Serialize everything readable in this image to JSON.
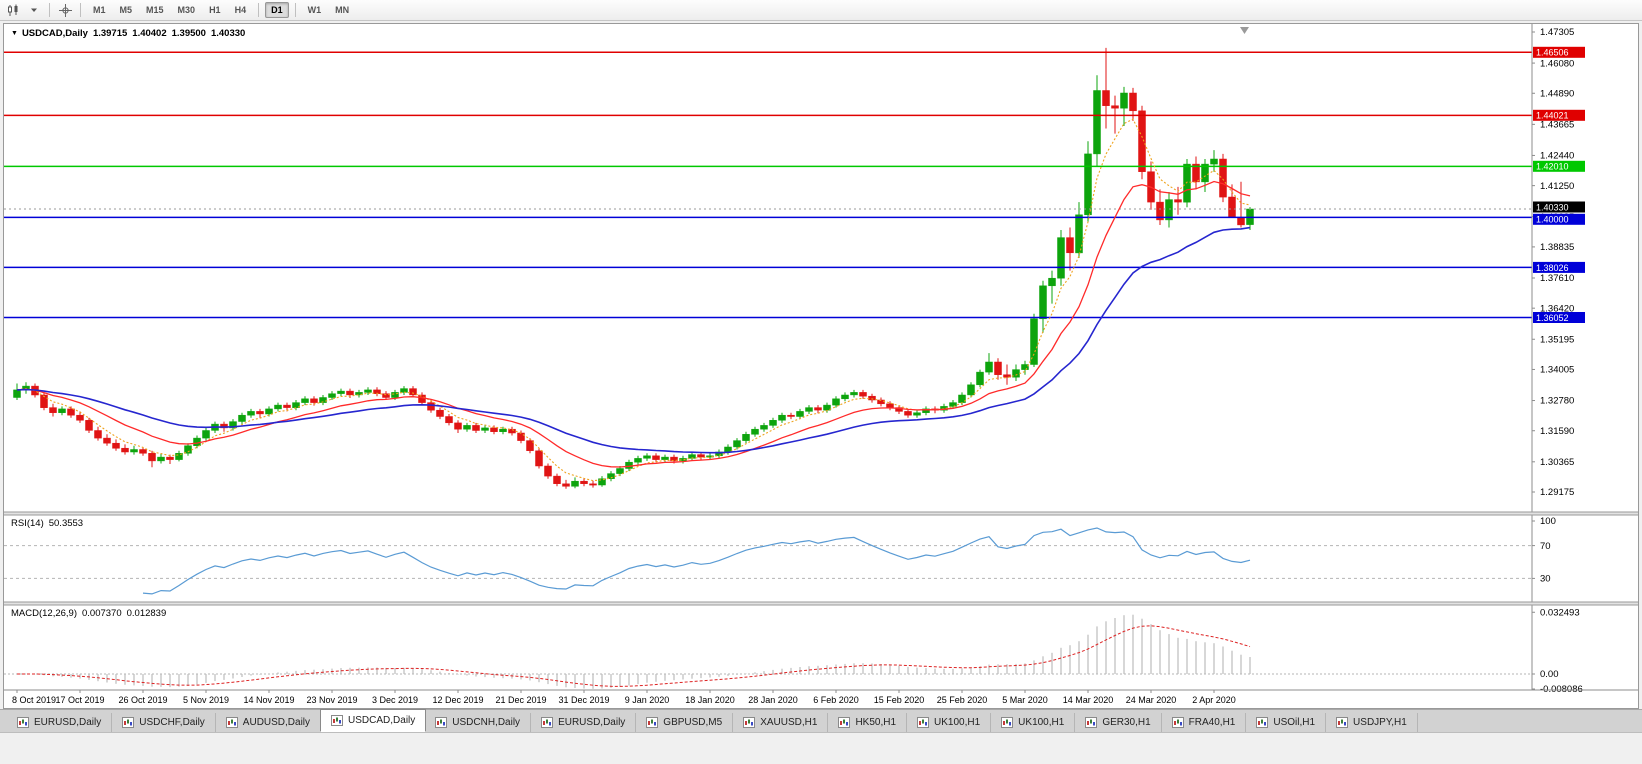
{
  "toolbar": {
    "icons": [
      "chart-type-icon",
      "crosshair-icon"
    ],
    "timeframes": [
      "M1",
      "M5",
      "M15",
      "M30",
      "H1",
      "H4",
      "D1",
      "W1",
      "MN"
    ],
    "active_timeframe": "D1",
    "group_separators_after": [
      "H4",
      "D1"
    ]
  },
  "chart_header": {
    "collapse_icon": "▼",
    "symbol": "USDCAD,Daily",
    "open": "1.39715",
    "high": "1.40402",
    "low": "1.39500",
    "close": "1.40330"
  },
  "rsi_panel": {
    "label": "RSI(14)",
    "value": "50.3553",
    "axis_labels": [
      "100",
      "70",
      "30"
    ]
  },
  "macd_panel": {
    "label": "MACD(12,26,9)",
    "values": [
      "0.007370",
      "0.012839"
    ],
    "axis_labels": [
      "0.032493",
      "0.00",
      "-0.008086"
    ]
  },
  "tabs": {
    "items": [
      "EURUSD,Daily",
      "USDCHF,Daily",
      "AUDUSD,Daily",
      "USDCAD,Daily",
      "USDCNH,Daily",
      "EURUSD,Daily",
      "GBPUSD,M5",
      "XAUUSD,H1",
      "HK50,H1",
      "UK100,H1",
      "UK100,H1",
      "GER30,H1",
      "FRA40,H1",
      "USOil,H1",
      "USDJPY,H1"
    ],
    "active_index": 3
  },
  "chart_data": {
    "type": "candlestick",
    "title": "USDCAD,Daily",
    "symbol": "USDCAD",
    "timeframe": "Daily",
    "ylim": [
      1.29175,
      1.47305
    ],
    "axis_top_price": 1.47305,
    "axis_bottom_price": 1.29175,
    "price_axis_ticks": [
      "1.47305",
      "1.46080",
      "1.44890",
      "1.43665",
      "1.42440",
      "1.41250",
      "1.40025",
      "1.38835",
      "1.37610",
      "1.36420",
      "1.35195",
      "1.34005",
      "1.32780",
      "1.31590",
      "1.30365",
      "1.29175"
    ],
    "date_labels": [
      "8 Oct 2019",
      "17 Oct 2019",
      "26 Oct 2019",
      "5 Nov 2019",
      "14 Nov 2019",
      "23 Nov 2019",
      "3 Dec 2019",
      "12 Dec 2019",
      "21 Dec 2019",
      "31 Dec 2019",
      "9 Jan 2020",
      "18 Jan 2020",
      "28 Jan 2020",
      "6 Feb 2020",
      "15 Feb 2020",
      "25 Feb 2020",
      "5 Mar 2020",
      "14 Mar 2020",
      "24 Mar 2020",
      "2 Apr 2020"
    ],
    "candles_per_label": 7,
    "bull_color": "#0da40d",
    "bear_color": "#e01414",
    "hlines": [
      {
        "price": 1.46506,
        "color": "#e00000",
        "badge": "1.46506",
        "badge_dy": 0
      },
      {
        "price": 1.44021,
        "color": "#e00000",
        "badge": "1.44021",
        "badge_dy": 0
      },
      {
        "price": 1.4201,
        "color": "#00c800",
        "badge": "1.42010",
        "badge_dy": 0
      },
      {
        "price": 1.4,
        "color": "#0000d8",
        "badge": "1.40000",
        "badge_dy": 2
      },
      {
        "price": 1.38026,
        "color": "#0000d8",
        "badge": "1.38026",
        "badge_dy": 0
      },
      {
        "price": 1.36052,
        "color": "#0000d8",
        "badge": "1.36052",
        "badge_dy": 0
      }
    ],
    "current_price": {
      "value": 1.4033,
      "badge": "1.40330",
      "color": "#000000",
      "badge_dy": -2
    },
    "moving_averages": [
      {
        "period": 5,
        "color": "#efa31d",
        "style": "dashed",
        "width": 1.1
      },
      {
        "period": 13,
        "color": "#ff2a2a",
        "style": "solid",
        "width": 1.3
      },
      {
        "period": 30,
        "color": "#2626cf",
        "style": "solid",
        "width": 1.6
      }
    ],
    "rsi": {
      "period": 14,
      "current": 50.3553,
      "levels": [
        70,
        30
      ],
      "color": "#5a9bd4"
    },
    "macd": {
      "fast": 12,
      "slow": 26,
      "signal": 9,
      "current_macd": 0.00737,
      "current_signal": 0.012839,
      "axis_max": 0.032493,
      "axis_min": -0.008086,
      "histogram_color": "#bcbcbc",
      "signal_color": "#dd2222"
    },
    "candles": [
      [
        1.329,
        1.3345,
        1.328,
        1.332
      ],
      [
        1.332,
        1.335,
        1.3305,
        1.3335
      ],
      [
        1.3335,
        1.3345,
        1.329,
        1.33
      ],
      [
        1.33,
        1.331,
        1.324,
        1.325
      ],
      [
        1.325,
        1.3265,
        1.3215,
        1.323
      ],
      [
        1.323,
        1.3255,
        1.322,
        1.3245
      ],
      [
        1.3245,
        1.3255,
        1.321,
        1.322
      ],
      [
        1.322,
        1.3235,
        1.319,
        1.32
      ],
      [
        1.32,
        1.321,
        1.315,
        1.316
      ],
      [
        1.316,
        1.3175,
        1.312,
        1.313
      ],
      [
        1.313,
        1.3145,
        1.31,
        1.311
      ],
      [
        1.311,
        1.3125,
        1.308,
        1.309
      ],
      [
        1.309,
        1.3105,
        1.3065,
        1.3075
      ],
      [
        1.3075,
        1.31,
        1.3065,
        1.3085
      ],
      [
        1.3085,
        1.3095,
        1.306,
        1.307
      ],
      [
        1.307,
        1.308,
        1.3015,
        1.304
      ],
      [
        1.304,
        1.307,
        1.303,
        1.3055
      ],
      [
        1.3055,
        1.3065,
        1.3028,
        1.3045
      ],
      [
        1.3045,
        1.308,
        1.3038,
        1.307
      ],
      [
        1.307,
        1.311,
        1.306,
        1.31
      ],
      [
        1.31,
        1.314,
        1.309,
        1.313
      ],
      [
        1.313,
        1.317,
        1.312,
        1.316
      ],
      [
        1.316,
        1.3195,
        1.315,
        1.3185
      ],
      [
        1.3185,
        1.3195,
        1.3155,
        1.317
      ],
      [
        1.317,
        1.3205,
        1.316,
        1.3195
      ],
      [
        1.3195,
        1.323,
        1.3185,
        1.322
      ],
      [
        1.322,
        1.3245,
        1.321,
        1.3235
      ],
      [
        1.3235,
        1.3245,
        1.321,
        1.3225
      ],
      [
        1.3225,
        1.3255,
        1.3215,
        1.3245
      ],
      [
        1.3245,
        1.327,
        1.3235,
        1.326
      ],
      [
        1.326,
        1.327,
        1.3235,
        1.325
      ],
      [
        1.325,
        1.328,
        1.324,
        1.327
      ],
      [
        1.327,
        1.3295,
        1.326,
        1.3285
      ],
      [
        1.3285,
        1.3295,
        1.3258,
        1.327
      ],
      [
        1.327,
        1.33,
        1.326,
        1.329
      ],
      [
        1.329,
        1.3315,
        1.328,
        1.3305
      ],
      [
        1.3305,
        1.3325,
        1.3295,
        1.3315
      ],
      [
        1.3315,
        1.3325,
        1.3288,
        1.33
      ],
      [
        1.33,
        1.332,
        1.329,
        1.331
      ],
      [
        1.331,
        1.333,
        1.33,
        1.332
      ],
      [
        1.332,
        1.333,
        1.3295,
        1.3305
      ],
      [
        1.3305,
        1.3315,
        1.328,
        1.329
      ],
      [
        1.329,
        1.332,
        1.328,
        1.331
      ],
      [
        1.331,
        1.3335,
        1.33,
        1.3325
      ],
      [
        1.3325,
        1.3335,
        1.329,
        1.33
      ],
      [
        1.33,
        1.331,
        1.326,
        1.327
      ],
      [
        1.327,
        1.328,
        1.323,
        1.324
      ],
      [
        1.324,
        1.325,
        1.3205,
        1.3215
      ],
      [
        1.3215,
        1.3225,
        1.318,
        1.319
      ],
      [
        1.319,
        1.32,
        1.315,
        1.3165
      ],
      [
        1.3165,
        1.319,
        1.3155,
        1.318
      ],
      [
        1.318,
        1.319,
        1.315,
        1.316
      ],
      [
        1.316,
        1.318,
        1.315,
        1.317
      ],
      [
        1.317,
        1.318,
        1.3145,
        1.3155
      ],
      [
        1.3155,
        1.3175,
        1.3145,
        1.3165
      ],
      [
        1.3165,
        1.3175,
        1.314,
        1.315
      ],
      [
        1.315,
        1.316,
        1.311,
        1.312
      ],
      [
        1.312,
        1.313,
        1.307,
        1.308
      ],
      [
        1.308,
        1.309,
        1.301,
        1.302
      ],
      [
        1.302,
        1.303,
        1.297,
        1.298
      ],
      [
        1.298,
        1.299,
        1.294,
        1.295
      ],
      [
        1.295,
        1.2965,
        1.293,
        1.294
      ],
      [
        1.294,
        1.2975,
        1.2932,
        1.296
      ],
      [
        1.296,
        1.297,
        1.294,
        1.295
      ],
      [
        1.295,
        1.2962,
        1.2935,
        1.2945
      ],
      [
        1.2945,
        1.298,
        1.2938,
        1.297
      ],
      [
        1.297,
        1.3,
        1.296,
        1.299
      ],
      [
        1.299,
        1.302,
        1.298,
        1.301
      ],
      [
        1.301,
        1.3045,
        1.3,
        1.3035
      ],
      [
        1.3035,
        1.306,
        1.3025,
        1.305
      ],
      [
        1.305,
        1.307,
        1.304,
        1.306
      ],
      [
        1.306,
        1.307,
        1.3035,
        1.3045
      ],
      [
        1.3045,
        1.3065,
        1.3035,
        1.3055
      ],
      [
        1.3055,
        1.3065,
        1.303,
        1.304
      ],
      [
        1.304,
        1.306,
        1.303,
        1.305
      ],
      [
        1.305,
        1.3075,
        1.304,
        1.3065
      ],
      [
        1.3065,
        1.3075,
        1.3045,
        1.3055
      ],
      [
        1.3055,
        1.307,
        1.3045,
        1.306
      ],
      [
        1.306,
        1.3085,
        1.305,
        1.3075
      ],
      [
        1.3075,
        1.3105,
        1.3065,
        1.3095
      ],
      [
        1.3095,
        1.313,
        1.3085,
        1.312
      ],
      [
        1.312,
        1.3155,
        1.311,
        1.3145
      ],
      [
        1.3145,
        1.3175,
        1.3135,
        1.3165
      ],
      [
        1.3165,
        1.319,
        1.3155,
        1.318
      ],
      [
        1.318,
        1.321,
        1.317,
        1.32
      ],
      [
        1.32,
        1.323,
        1.319,
        1.322
      ],
      [
        1.322,
        1.323,
        1.3205,
        1.3215
      ],
      [
        1.3215,
        1.3245,
        1.3205,
        1.3235
      ],
      [
        1.3235,
        1.326,
        1.3225,
        1.325
      ],
      [
        1.325,
        1.326,
        1.3228,
        1.324
      ],
      [
        1.324,
        1.327,
        1.323,
        1.326
      ],
      [
        1.326,
        1.3295,
        1.325,
        1.3285
      ],
      [
        1.3285,
        1.331,
        1.3275,
        1.33
      ],
      [
        1.33,
        1.332,
        1.329,
        1.331
      ],
      [
        1.331,
        1.332,
        1.3285,
        1.3295
      ],
      [
        1.3295,
        1.3305,
        1.327,
        1.328
      ],
      [
        1.328,
        1.329,
        1.3255,
        1.3265
      ],
      [
        1.3265,
        1.3275,
        1.324,
        1.325
      ],
      [
        1.325,
        1.326,
        1.3225,
        1.3235
      ],
      [
        1.3235,
        1.3245,
        1.321,
        1.322
      ],
      [
        1.322,
        1.324,
        1.321,
        1.323
      ],
      [
        1.323,
        1.3255,
        1.322,
        1.3245
      ],
      [
        1.3245,
        1.3255,
        1.3228,
        1.324
      ],
      [
        1.324,
        1.3265,
        1.323,
        1.3255
      ],
      [
        1.3255,
        1.328,
        1.3245,
        1.327
      ],
      [
        1.327,
        1.331,
        1.326,
        1.33
      ],
      [
        1.33,
        1.335,
        1.329,
        1.334
      ],
      [
        1.334,
        1.34,
        1.333,
        1.339
      ],
      [
        1.339,
        1.3465,
        1.338,
        1.343
      ],
      [
        1.343,
        1.3445,
        1.336,
        1.338
      ],
      [
        1.338,
        1.342,
        1.334,
        1.337
      ],
      [
        1.337,
        1.342,
        1.3355,
        1.34
      ],
      [
        1.34,
        1.3435,
        1.338,
        1.342
      ],
      [
        1.342,
        1.362,
        1.341,
        1.36
      ],
      [
        1.36,
        1.375,
        1.3545,
        1.373
      ],
      [
        1.373,
        1.379,
        1.366,
        1.376
      ],
      [
        1.376,
        1.395,
        1.373,
        1.392
      ],
      [
        1.392,
        1.396,
        1.379,
        1.386
      ],
      [
        1.386,
        1.406,
        1.384,
        1.401
      ],
      [
        1.401,
        1.43,
        1.398,
        1.425
      ],
      [
        1.425,
        1.456,
        1.42,
        1.45
      ],
      [
        1.45,
        1.4668,
        1.435,
        1.444
      ],
      [
        1.444,
        1.448,
        1.433,
        1.443
      ],
      [
        1.443,
        1.4514,
        1.436,
        1.449
      ],
      [
        1.449,
        1.451,
        1.438,
        1.442
      ],
      [
        1.442,
        1.444,
        1.415,
        1.418
      ],
      [
        1.418,
        1.422,
        1.403,
        1.406
      ],
      [
        1.406,
        1.411,
        1.397,
        1.399
      ],
      [
        1.399,
        1.41,
        1.396,
        1.407
      ],
      [
        1.407,
        1.412,
        1.401,
        1.406
      ],
      [
        1.406,
        1.423,
        1.404,
        1.421
      ],
      [
        1.421,
        1.424,
        1.411,
        1.414
      ],
      [
        1.414,
        1.423,
        1.41,
        1.421
      ],
      [
        1.421,
        1.4265,
        1.418,
        1.423
      ],
      [
        1.423,
        1.425,
        1.406,
        1.408
      ],
      [
        1.408,
        1.413,
        1.4,
        1.4
      ],
      [
        1.4,
        1.414,
        1.396,
        1.397
      ],
      [
        1.39715,
        1.40402,
        1.395,
        1.4033
      ]
    ]
  }
}
